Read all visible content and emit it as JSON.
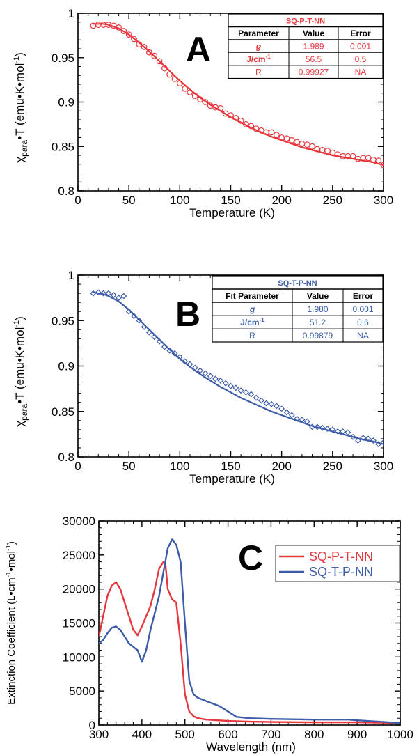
{
  "chart_data": [
    {
      "panel": "A",
      "type": "scatter",
      "ylabel_symbol": "χ",
      "ylabel_sub": "para",
      "ylabel_rest": "•T (emu•K•mol",
      "ylabel_sup": "-1",
      "ylabel_close": ")",
      "xlabel": "Temperature (K)",
      "xlim": [
        0,
        300
      ],
      "ylim": [
        0.8,
        1.0
      ],
      "xticks": [
        "0",
        "50",
        "100",
        "150",
        "200",
        "250",
        "300"
      ],
      "yticks": [
        "0.8",
        "0.85",
        "0.9",
        "0.95",
        "1"
      ],
      "color": "#e8363d",
      "marker": "circle",
      "series": [
        {
          "x": [
            15,
            20,
            25,
            30,
            35,
            40,
            45,
            50,
            55,
            60,
            65,
            70,
            75,
            80,
            85,
            90,
            95,
            100,
            105,
            110,
            115,
            120,
            125,
            130,
            135,
            140,
            145,
            150,
            155,
            160,
            165,
            170,
            175,
            180,
            185,
            190,
            195,
            200,
            205,
            210,
            215,
            220,
            225,
            230,
            235,
            240,
            245,
            250,
            255,
            260,
            265,
            270,
            275,
            280,
            285,
            290,
            295,
            300
          ],
          "y": [
            0.986,
            0.987,
            0.987,
            0.987,
            0.986,
            0.984,
            0.98,
            0.976,
            0.971,
            0.965,
            0.962,
            0.956,
            0.952,
            0.946,
            0.938,
            0.931,
            0.926,
            0.921,
            0.915,
            0.911,
            0.907,
            0.903,
            0.9,
            0.896,
            0.894,
            0.893,
            0.887,
            0.885,
            0.882,
            0.879,
            0.875,
            0.873,
            0.87,
            0.868,
            0.866,
            0.866,
            0.863,
            0.86,
            0.859,
            0.857,
            0.855,
            0.853,
            0.852,
            0.85,
            0.847,
            0.846,
            0.845,
            0.843,
            0.841,
            0.839,
            0.839,
            0.839,
            0.836,
            0.837,
            0.837,
            0.835,
            0.834,
            0.829
          ]
        }
      ],
      "fit": {
        "x": [
          15,
          20,
          25,
          30,
          40,
          50,
          60,
          70,
          80,
          90,
          100,
          110,
          120,
          130,
          140,
          150,
          160,
          170,
          180,
          190,
          200,
          210,
          220,
          230,
          240,
          250,
          260,
          270,
          280,
          290,
          300
        ],
        "y": [
          0.988,
          0.988,
          0.988,
          0.987,
          0.983,
          0.976,
          0.967,
          0.957,
          0.946,
          0.935,
          0.924,
          0.914,
          0.905,
          0.897,
          0.89,
          0.883,
          0.877,
          0.871,
          0.866,
          0.861,
          0.857,
          0.853,
          0.849,
          0.846,
          0.843,
          0.84,
          0.838,
          0.836,
          0.834,
          0.832,
          0.829
        ]
      },
      "table": {
        "title": "SQ-P-T-NN",
        "headers": [
          "Parameter",
          "Value",
          "Error"
        ],
        "rows": [
          [
            "g",
            "1.989",
            "0.001"
          ],
          [
            "J/cm",
            "56.5",
            "0.5"
          ],
          [
            "R",
            "0.99927",
            "NA"
          ]
        ],
        "row1_sup": "-1"
      }
    },
    {
      "panel": "B",
      "type": "scatter",
      "ylabel_symbol": "χ",
      "ylabel_sub": "para",
      "ylabel_rest": "•T (emu•K•mol",
      "ylabel_sup": "-1",
      "ylabel_close": ")",
      "xlabel": "Temperature (K)",
      "xlim": [
        0,
        300
      ],
      "ylim": [
        0.8,
        1.0
      ],
      "xticks": [
        "0",
        "50",
        "100",
        "150",
        "200",
        "250",
        "300"
      ],
      "yticks": [
        "0.8",
        "0.85",
        "0.9",
        "0.95",
        "1"
      ],
      "color": "#3c5ba8",
      "marker": "diamond",
      "series": [
        {
          "x": [
            15,
            20,
            25,
            30,
            35,
            40,
            45,
            50,
            55,
            60,
            65,
            70,
            75,
            80,
            85,
            90,
            95,
            100,
            105,
            110,
            115,
            120,
            125,
            130,
            135,
            140,
            145,
            150,
            155,
            160,
            165,
            170,
            175,
            180,
            185,
            190,
            195,
            200,
            205,
            210,
            215,
            220,
            225,
            230,
            235,
            240,
            245,
            250,
            255,
            260,
            265,
            270,
            275,
            280,
            285,
            290,
            295,
            300
          ],
          "y": [
            0.98,
            0.981,
            0.98,
            0.98,
            0.978,
            0.975,
            0.977,
            0.96,
            0.955,
            0.95,
            0.943,
            0.937,
            0.932,
            0.927,
            0.921,
            0.917,
            0.914,
            0.91,
            0.905,
            0.902,
            0.898,
            0.895,
            0.892,
            0.889,
            0.886,
            0.884,
            0.881,
            0.878,
            0.876,
            0.873,
            0.871,
            0.869,
            0.865,
            0.862,
            0.859,
            0.858,
            0.856,
            0.853,
            0.849,
            0.846,
            0.842,
            0.841,
            0.839,
            0.833,
            0.833,
            0.832,
            0.831,
            0.83,
            0.828,
            0.828,
            0.827,
            0.822,
            0.818,
            0.821,
            0.82,
            0.818,
            0.814,
            0.816
          ]
        }
      ],
      "fit": {
        "x": [
          15,
          20,
          25,
          30,
          40,
          50,
          60,
          70,
          80,
          90,
          100,
          110,
          120,
          130,
          140,
          150,
          160,
          170,
          180,
          190,
          200,
          210,
          220,
          230,
          240,
          250,
          260,
          270,
          280,
          290,
          300
        ],
        "y": [
          0.981,
          0.98,
          0.979,
          0.977,
          0.971,
          0.962,
          0.951,
          0.94,
          0.929,
          0.918,
          0.908,
          0.899,
          0.891,
          0.884,
          0.877,
          0.871,
          0.865,
          0.86,
          0.855,
          0.85,
          0.846,
          0.842,
          0.838,
          0.834,
          0.831,
          0.828,
          0.825,
          0.822,
          0.819,
          0.817,
          0.814
        ]
      },
      "table": {
        "title": "SQ-T-P-NN",
        "headers": [
          "Fit Parameter",
          "Value",
          "Error"
        ],
        "rows": [
          [
            "g",
            "1.980",
            "0.001"
          ],
          [
            "J/cm",
            "51.2",
            "0.6"
          ],
          [
            "R",
            "0.99879",
            "NA"
          ]
        ],
        "row1_sup": "-1"
      }
    },
    {
      "panel": "C",
      "type": "line",
      "ylabel_rest": "Extinction Coefficient (L•cm",
      "ylabel_sup1": "-1",
      "ylabel_mid": "•mol",
      "ylabel_sup2": "-1",
      "ylabel_close": ")",
      "xlabel": "Wavelength (nm)",
      "xlim": [
        300,
        1000
      ],
      "ylim": [
        0,
        30000
      ],
      "xticks": [
        "300",
        "400",
        "500",
        "600",
        "700",
        "800",
        "900",
        "1000"
      ],
      "yticks": [
        "0",
        "5000",
        "10000",
        "15000",
        "20000",
        "25000",
        "30000"
      ],
      "series": [
        {
          "name": "SQ-P-T-NN",
          "color": "#e8363d",
          "x": [
            300,
            310,
            320,
            330,
            340,
            350,
            360,
            370,
            380,
            390,
            400,
            410,
            420,
            430,
            440,
            450,
            455,
            460,
            470,
            480,
            490,
            500,
            510,
            520,
            530,
            550,
            600,
            650,
            700,
            800,
            900,
            1000
          ],
          "y": [
            13000,
            16000,
            19000,
            20500,
            21000,
            20000,
            18000,
            16000,
            14000,
            13200,
            14500,
            16000,
            17500,
            20000,
            23000,
            24000,
            23500,
            20000,
            18500,
            18000,
            12000,
            4500,
            2000,
            1300,
            1000,
            800,
            600,
            500,
            450,
            400,
            400,
            300
          ]
        },
        {
          "name": "SQ-T-P-NN",
          "color": "#3c5ba8",
          "x": [
            300,
            310,
            320,
            330,
            340,
            350,
            360,
            370,
            380,
            390,
            400,
            410,
            420,
            430,
            440,
            450,
            460,
            470,
            480,
            490,
            500,
            510,
            520,
            530,
            550,
            580,
            600,
            620,
            650,
            700,
            800,
            880,
            900,
            950,
            1000
          ],
          "y": [
            12000,
            12500,
            13500,
            14300,
            14500,
            14000,
            13000,
            12000,
            11500,
            11000,
            9300,
            11000,
            14000,
            16500,
            19000,
            22500,
            26000,
            27300,
            26500,
            24000,
            15000,
            6500,
            4500,
            4000,
            3500,
            2800,
            2000,
            1200,
            1000,
            900,
            800,
            800,
            700,
            500,
            300
          ]
        }
      ]
    }
  ]
}
